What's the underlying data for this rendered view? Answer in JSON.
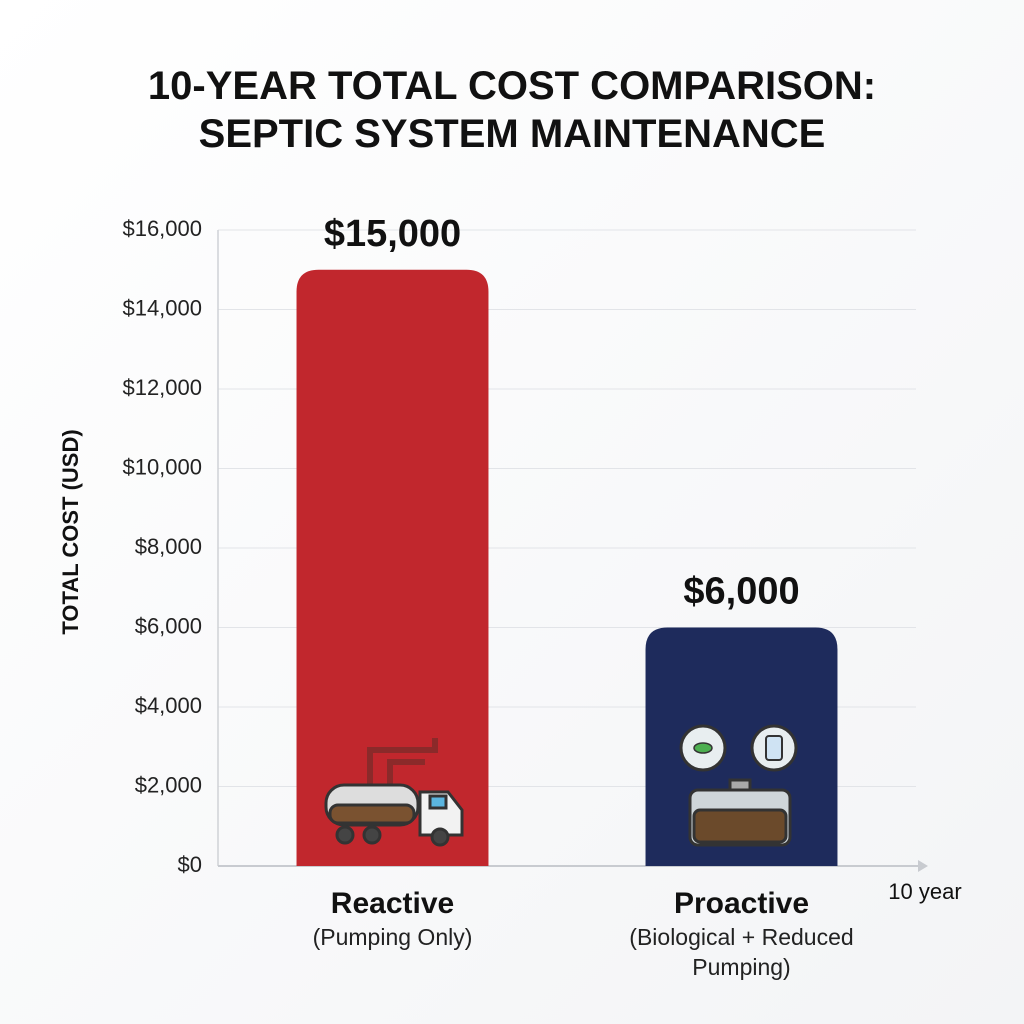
{
  "chart_data": {
    "type": "bar",
    "title": "10-YEAR TOTAL COST COMPARISON: SEPTIC SYSTEM MAINTENANCE",
    "y_label": "TOTAL COST (USD)",
    "x_label": "10 year",
    "categories": [
      "Reactive",
      "Proactive"
    ],
    "category_notes": [
      "(Pumping Only)",
      "(Biological + Reduced Pumping)"
    ],
    "values": [
      15000,
      6000
    ],
    "value_labels": [
      "$15,000",
      "$6,000"
    ],
    "colors": [
      "#c1272d",
      "#1e2b5c"
    ],
    "ylim": [
      0,
      16000
    ],
    "yticks": [
      {
        "value": 0,
        "label": "$0"
      },
      {
        "value": 2000,
        "label": "$2,000"
      },
      {
        "value": 4000,
        "label": "$4,000"
      },
      {
        "value": 6000,
        "label": "$6,000"
      },
      {
        "value": 8000,
        "label": "$8,000"
      },
      {
        "value": 10000,
        "label": "$10,000"
      },
      {
        "value": 12000,
        "label": "$12,000"
      },
      {
        "value": 14000,
        "label": "$14,000"
      },
      {
        "value": 16000,
        "label": "$16,000"
      }
    ],
    "grid": true
  }
}
